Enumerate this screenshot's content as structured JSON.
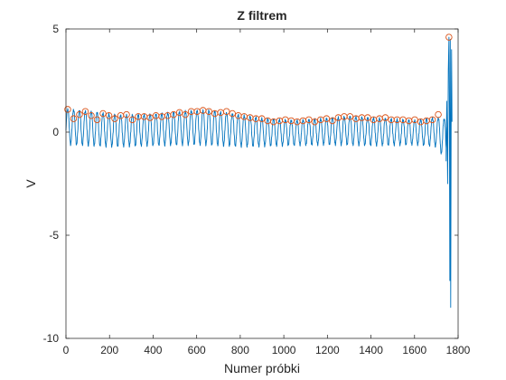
{
  "chart_data": {
    "type": "line",
    "title": "Z filtrem",
    "xlabel": "Numer próbki",
    "ylabel": "V",
    "xlim": [
      0,
      1800
    ],
    "ylim": [
      -10,
      5
    ],
    "xticks": [
      "0",
      "200",
      "400",
      "600",
      "800",
      "1000",
      "1200",
      "1400",
      "1600",
      "1800"
    ],
    "yticks": [
      "5",
      "0",
      "-5",
      "-10"
    ],
    "grid": false,
    "legend": "none",
    "series": [
      {
        "kind": "signal-line",
        "color": "#0072BD",
        "periodic": {
          "x_start": 0,
          "x_end": 1745,
          "beat_period": 27,
          "peak_levels": [
            [
              0,
              1.1
            ],
            [
              100,
              1.0
            ],
            [
              250,
              0.8
            ],
            [
              400,
              0.85
            ],
            [
              550,
              1.0
            ],
            [
              650,
              1.05
            ],
            [
              750,
              0.9
            ],
            [
              900,
              0.65
            ],
            [
              1050,
              0.55
            ],
            [
              1200,
              0.65
            ],
            [
              1300,
              0.75
            ],
            [
              1450,
              0.65
            ],
            [
              1600,
              0.55
            ],
            [
              1700,
              0.7
            ],
            [
              1745,
              0.6
            ]
          ],
          "trough_levels": [
            [
              0,
              -0.6
            ],
            [
              200,
              -0.7
            ],
            [
              400,
              -0.65
            ],
            [
              600,
              -0.6
            ],
            [
              800,
              -0.7
            ],
            [
              1000,
              -0.65
            ],
            [
              1200,
              -0.6
            ],
            [
              1400,
              -0.65
            ],
            [
              1600,
              -0.6
            ],
            [
              1700,
              -0.7
            ],
            [
              1745,
              -1.4
            ]
          ]
        },
        "tail": [
          [
            1745,
            -1.4
          ],
          [
            1748,
            1.5
          ],
          [
            1752,
            -2.5
          ],
          [
            1755,
            3.0
          ],
          [
            1758,
            4.6
          ],
          [
            1760,
            1.0
          ],
          [
            1762,
            -7.2
          ],
          [
            1764,
            4.5
          ],
          [
            1766,
            -8.5
          ],
          [
            1768,
            0.2
          ],
          [
            1770,
            4.0
          ],
          [
            1772,
            0.5
          ]
        ]
      },
      {
        "kind": "peak-markers",
        "color": "#D95319",
        "points": [
          [
            8,
            1.1
          ],
          [
            35,
            0.65
          ],
          [
            62,
            0.85
          ],
          [
            89,
            1.0
          ],
          [
            116,
            0.8
          ],
          [
            143,
            0.6
          ],
          [
            170,
            0.9
          ],
          [
            197,
            0.8
          ],
          [
            224,
            0.65
          ],
          [
            251,
            0.8
          ],
          [
            278,
            0.85
          ],
          [
            305,
            0.6
          ],
          [
            332,
            0.75
          ],
          [
            359,
            0.75
          ],
          [
            386,
            0.7
          ],
          [
            413,
            0.8
          ],
          [
            440,
            0.75
          ],
          [
            467,
            0.8
          ],
          [
            494,
            0.85
          ],
          [
            521,
            0.95
          ],
          [
            548,
            0.85
          ],
          [
            575,
            1.0
          ],
          [
            602,
            1.0
          ],
          [
            629,
            1.05
          ],
          [
            656,
            1.0
          ],
          [
            683,
            0.9
          ],
          [
            710,
            0.95
          ],
          [
            737,
            1.0
          ],
          [
            764,
            0.9
          ],
          [
            791,
            0.8
          ],
          [
            818,
            0.75
          ],
          [
            845,
            0.7
          ],
          [
            872,
            0.65
          ],
          [
            899,
            0.65
          ],
          [
            926,
            0.55
          ],
          [
            953,
            0.5
          ],
          [
            980,
            0.55
          ],
          [
            1007,
            0.6
          ],
          [
            1034,
            0.55
          ],
          [
            1061,
            0.5
          ],
          [
            1088,
            0.55
          ],
          [
            1115,
            0.6
          ],
          [
            1142,
            0.5
          ],
          [
            1169,
            0.6
          ],
          [
            1196,
            0.65
          ],
          [
            1223,
            0.55
          ],
          [
            1250,
            0.7
          ],
          [
            1277,
            0.75
          ],
          [
            1304,
            0.75
          ],
          [
            1331,
            0.65
          ],
          [
            1358,
            0.7
          ],
          [
            1385,
            0.7
          ],
          [
            1412,
            0.6
          ],
          [
            1439,
            0.65
          ],
          [
            1466,
            0.7
          ],
          [
            1493,
            0.6
          ],
          [
            1520,
            0.6
          ],
          [
            1547,
            0.6
          ],
          [
            1574,
            0.55
          ],
          [
            1601,
            0.6
          ],
          [
            1628,
            0.5
          ],
          [
            1655,
            0.55
          ],
          [
            1682,
            0.6
          ],
          [
            1709,
            0.85
          ],
          [
            1758,
            4.6
          ]
        ]
      }
    ]
  }
}
